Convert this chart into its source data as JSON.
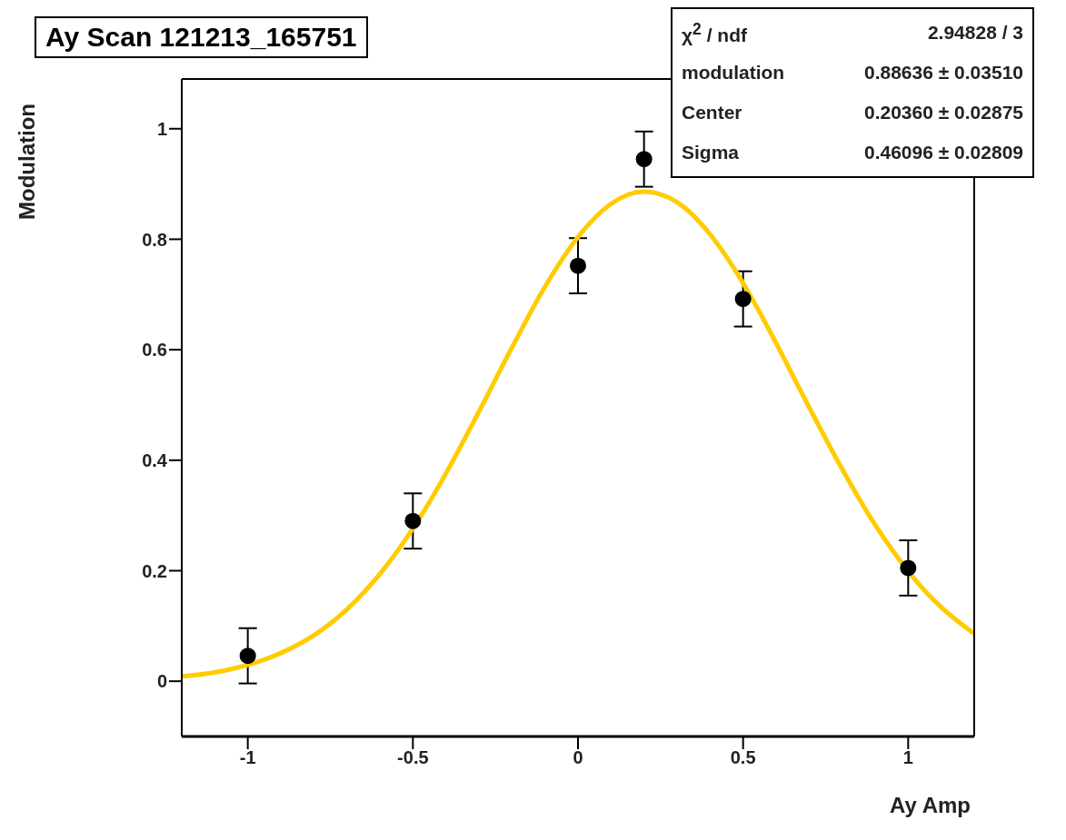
{
  "chart_data": {
    "type": "scatter",
    "title": "Ay Scan 121213_165751",
    "xlabel": "Ay Amp",
    "ylabel": "Modulation",
    "xlim": [
      -1.2,
      1.2
    ],
    "xticks": [
      -1,
      -0.5,
      0,
      0.5,
      1
    ],
    "ylim": [
      -0.1,
      1.09
    ],
    "yticks": [
      0,
      0.2,
      0.4,
      0.6,
      0.8,
      1
    ],
    "legend": false,
    "marker": "circle",
    "annotations": [
      "χ$^{2}$ / ndf",
      "2.94828 / 3",
      "modulation",
      "0.88636 ± 0.03510",
      "Center",
      "0.20360 ± 0.02875",
      "Sigma",
      "0.46096 ± 0.02809"
    ],
    "series": [
      {
        "color": "#000000",
        "x": [
          -1,
          -0.5,
          0,
          0.2,
          0.5,
          1
        ],
        "values": [
          0.046,
          0.29,
          0.752,
          0.945,
          0.692,
          0.205
        ],
        "errors": [
          0.05,
          0.05,
          0.05,
          0.05,
          0.05,
          0.05
        ]
      },
      {
        "type": "line",
        "color": "#ffcc00",
        "marker": "none",
        "x": [
          -1.2,
          -1.1,
          -1.05,
          -0.95,
          -0.9,
          -0.8,
          -0.7,
          -0.6,
          -0.55,
          -0.45,
          -0.4,
          -0.3,
          -0.2,
          -0.1,
          0,
          0.1,
          0.2,
          0.3,
          0.4,
          0.45,
          0.55,
          0.6,
          0.7,
          0.8,
          0.9,
          0.95,
          1.05,
          1.1,
          1.2
        ],
        "values": [
          0.009,
          0.016,
          0.022,
          0.039,
          0.051,
          0.083,
          0.13,
          0.194,
          0.233,
          0.324,
          0.376,
          0.488,
          0.604,
          0.714,
          0.804,
          0.864,
          0.886,
          0.867,
          0.809,
          0.768,
          0.668,
          0.612,
          0.496,
          0.384,
          0.283,
          0.239,
          0.164,
          0.134,
          0.086
        ]
      }
    ]
  }
}
